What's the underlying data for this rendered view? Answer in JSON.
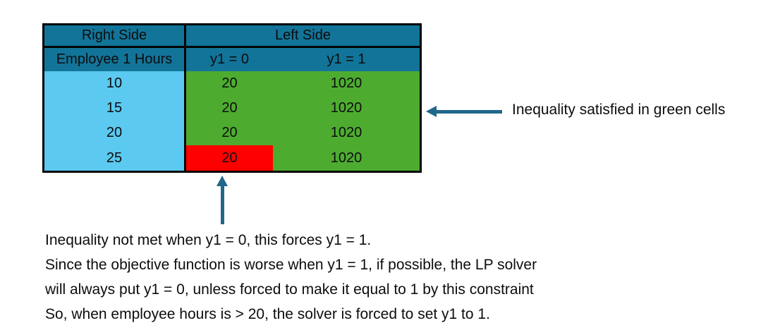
{
  "table": {
    "header_row1": {
      "right": "Right Side",
      "left": "Left Side"
    },
    "header_row2": {
      "col1": "Employee 1 Hours",
      "col2": "y1 = 0",
      "col3": "y1 = 1"
    },
    "rows": [
      [
        "10",
        "20",
        "1020"
      ],
      [
        "15",
        "20",
        "1020"
      ],
      [
        "20",
        "20",
        "1020"
      ],
      [
        "25",
        "20",
        "1020"
      ]
    ],
    "violated_cell": {
      "row": 3,
      "col": 1,
      "value": "20"
    }
  },
  "annotations": {
    "green_note": "Inequality satisfied in green cells",
    "explanation_lines": [
      "Inequality not met when y1 = 0, this forces y1 = 1.",
      "Since the objective function is worse when y1 = 1, if possible, the LP solver",
      "will always put y1 = 0, unless forced to make it equal to 1 by this constraint",
      "So, when employee hours is > 20, the solver is forced to set y1 to 1."
    ]
  },
  "colors": {
    "header_bg": "#127499",
    "right_side_column_bg": "#5BC9F0",
    "satisfied_cell_bg": "#4DAC30",
    "violated_cell_bg": "#FF0000",
    "arrow": "#21678B",
    "table_border": "#000000"
  }
}
